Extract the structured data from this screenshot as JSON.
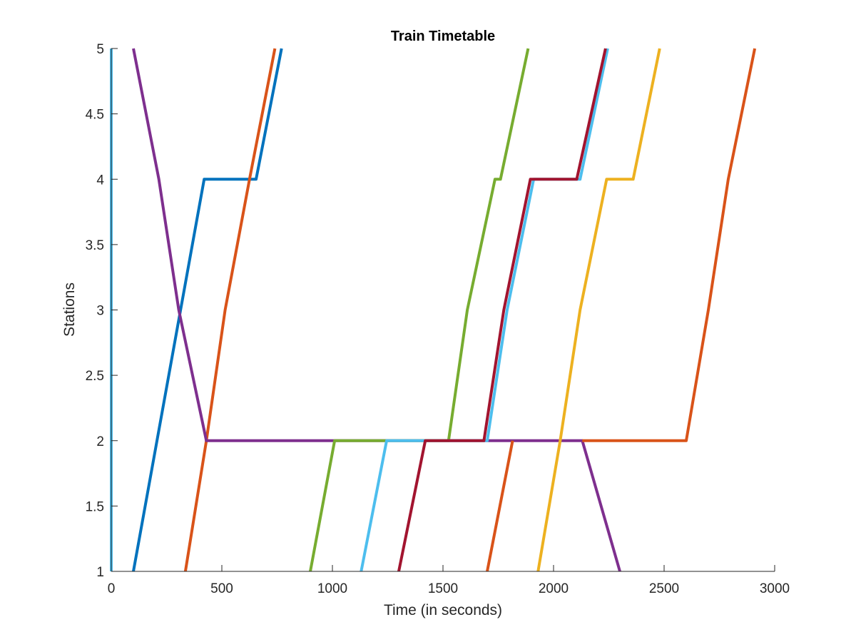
{
  "chart_data": {
    "type": "line",
    "title": "Train Timetable",
    "xlabel": "Time (in seconds)",
    "ylabel": "Stations",
    "xlim": [
      0,
      3000
    ],
    "ylim": [
      1,
      5
    ],
    "grid": false,
    "box": false,
    "xticks": [
      0,
      500,
      1000,
      1500,
      2000,
      2500,
      3000
    ],
    "xtick_labels": [
      "0",
      "500",
      "1000",
      "1500",
      "2000",
      "2500",
      "3000"
    ],
    "yticks": [
      1,
      1.5,
      2,
      2.5,
      3,
      3.5,
      4,
      4.5,
      5
    ],
    "ytick_labels": [
      "1",
      "1.5",
      "2",
      "2.5",
      "3",
      "3.5",
      "4",
      "4.5",
      "5"
    ],
    "series": [
      {
        "color": "#4DBEEE",
        "x": [
          0,
          0
        ],
        "y": [
          1,
          5
        ]
      },
      {
        "color": "#0072BD",
        "x": [
          100,
          420,
          655,
          770
        ],
        "y": [
          1,
          4,
          4,
          5
        ]
      },
      {
        "color": "#D95319",
        "x": [
          335,
          430,
          515,
          625,
          740
        ],
        "y": [
          1,
          2,
          3,
          4,
          5
        ]
      },
      {
        "color": "#7E2F8E",
        "x": [
          100,
          215,
          305,
          430,
          2130,
          2300
        ],
        "y": [
          5,
          4,
          3,
          2,
          2,
          1
        ]
      },
      {
        "color": "#77AC30",
        "x": [
          900,
          1010,
          1525,
          1610,
          1735,
          1760,
          1885
        ],
        "y": [
          1,
          2,
          2,
          3,
          4,
          4,
          5
        ]
      },
      {
        "color": "#4DBEEE",
        "x": [
          1130,
          1245,
          1700,
          1790,
          1910,
          2120,
          2245
        ],
        "y": [
          1,
          2,
          2,
          3,
          4,
          4,
          5
        ]
      },
      {
        "color": "#A2142F",
        "x": [
          1300,
          1420,
          1685,
          1775,
          1895,
          2105,
          2235
        ],
        "y": [
          1,
          2,
          2,
          3,
          4,
          4,
          5
        ]
      },
      {
        "color": "#D95319",
        "x": [
          1700,
          1815
        ],
        "y": [
          1,
          2
        ]
      },
      {
        "color": "#EDB120",
        "x": [
          1930,
          2030,
          2120,
          2240,
          2360,
          2480
        ],
        "y": [
          1,
          2,
          3,
          4,
          4,
          5
        ]
      },
      {
        "color": "#D95319",
        "x": [
          2130,
          2600,
          2700,
          2790,
          2910
        ],
        "y": [
          2,
          2,
          3,
          4,
          5
        ]
      }
    ]
  }
}
